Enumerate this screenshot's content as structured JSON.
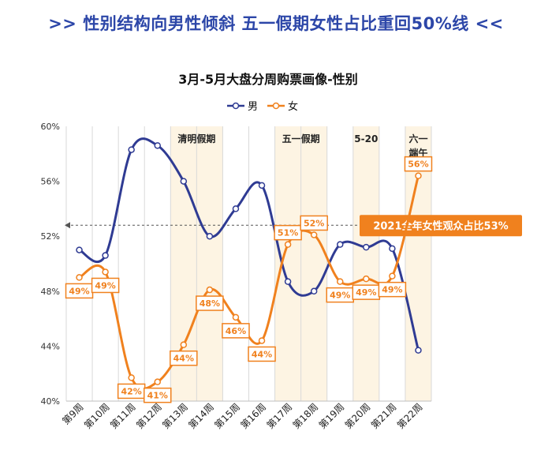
{
  "headline": ">> 性别结构向男性倾斜 五一假期女性占比重回50%线 <<",
  "chart_data": {
    "type": "line",
    "title": "3月-5月大盘分周购票画像-性别",
    "xlabel": "",
    "ylabel": "",
    "categories": [
      "第9周",
      "第10周",
      "第11周",
      "第12周",
      "第13周",
      "第14周",
      "第15周",
      "第16周",
      "第17周",
      "第18周",
      "第19周",
      "第20周",
      "第21周",
      "第22周"
    ],
    "ylim": [
      40,
      60
    ],
    "yticks": [
      40,
      44,
      48,
      52,
      56,
      60
    ],
    "ytick_labels": [
      "40%",
      "44%",
      "48%",
      "52%",
      "56%",
      "60%"
    ],
    "series": [
      {
        "name": "男",
        "color": "#2f3b93",
        "values": [
          51,
          50.6,
          58.3,
          58.6,
          56,
          52,
          54,
          55.7,
          48.7,
          48,
          51.4,
          51.2,
          51.1,
          43.7
        ]
      },
      {
        "name": "女",
        "color": "#f0811e",
        "values": [
          49,
          49.4,
          41.7,
          41.4,
          44.1,
          48.1,
          46.1,
          44.4,
          51.4,
          52.1,
          48.7,
          48.9,
          49.1,
          56.4
        ],
        "data_labels": [
          "49%",
          "49%",
          "42%",
          "41%",
          "44%",
          "48%",
          "46%",
          "44%",
          "51%",
          "52%",
          "49%",
          "49%",
          "49%",
          "56%"
        ]
      }
    ],
    "legend_position": "top-center",
    "grid": {
      "vertical": true,
      "horizontal": false
    },
    "highlight_bands": [
      {
        "start": 4,
        "end": 5,
        "label": "清明假期",
        "color": "#fdf4e3"
      },
      {
        "start": 8,
        "end": 9,
        "label": "五一假期",
        "color": "#fdf4e3"
      },
      {
        "start": 11,
        "end": 11,
        "label": "5-20",
        "color": "#fdf4e3"
      },
      {
        "start": 13,
        "end": 13,
        "label": "六一\n端午",
        "color": "#fdf4e3"
      }
    ],
    "reference_line": {
      "value": 52.8,
      "label": "2021全年女性观众占比53%",
      "color": "#f0811e"
    }
  }
}
